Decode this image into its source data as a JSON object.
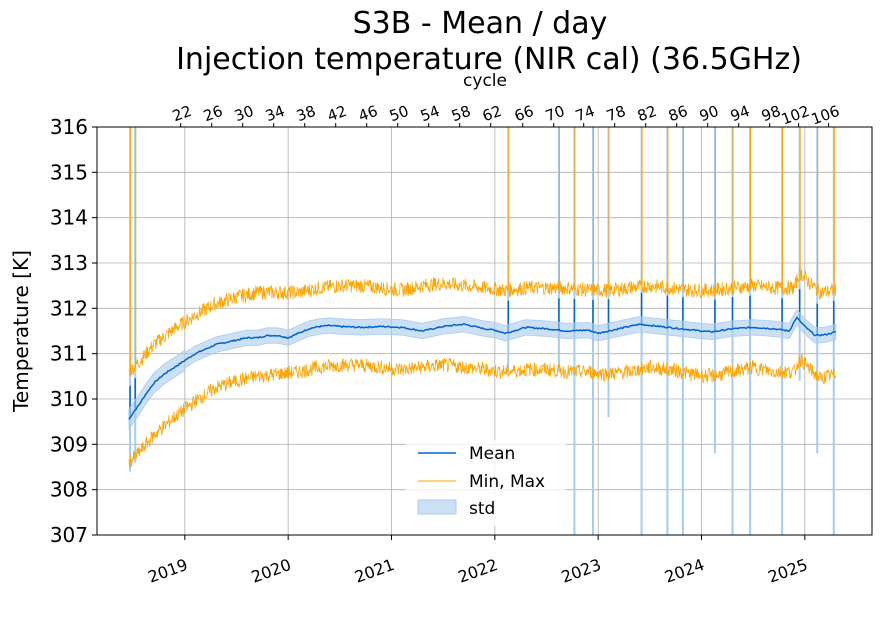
{
  "chart_data": {
    "type": "line",
    "title": "S3B - Mean / day",
    "subtitle": "Injection temperature (NIR cal) (36.5GHz)",
    "ylabel": "Temperature [K]",
    "x2label": "cycle",
    "ylim": [
      307,
      316
    ],
    "xlim": [
      2018.15,
      2025.65
    ],
    "yticks": [
      307,
      308,
      309,
      310,
      311,
      312,
      313,
      314,
      315,
      316
    ],
    "xticks": [
      {
        "value": 2019,
        "label": "2019"
      },
      {
        "value": 2020,
        "label": "2020"
      },
      {
        "value": 2021,
        "label": "2021"
      },
      {
        "value": 2022,
        "label": "2022"
      },
      {
        "value": 2023,
        "label": "2023"
      },
      {
        "value": 2024,
        "label": "2024"
      },
      {
        "value": 2025,
        "label": "2025"
      }
    ],
    "cycle_ticks": [
      {
        "value": 2018.96,
        "label": "22"
      },
      {
        "value": 2019.26,
        "label": "26"
      },
      {
        "value": 2019.56,
        "label": "30"
      },
      {
        "value": 2019.86,
        "label": "34"
      },
      {
        "value": 2020.16,
        "label": "38"
      },
      {
        "value": 2020.46,
        "label": "42"
      },
      {
        "value": 2020.76,
        "label": "46"
      },
      {
        "value": 2021.06,
        "label": "50"
      },
      {
        "value": 2021.36,
        "label": "54"
      },
      {
        "value": 2021.66,
        "label": "58"
      },
      {
        "value": 2021.96,
        "label": "62"
      },
      {
        "value": 2022.27,
        "label": "66"
      },
      {
        "value": 2022.57,
        "label": "70"
      },
      {
        "value": 2022.86,
        "label": "74"
      },
      {
        "value": 2023.16,
        "label": "78"
      },
      {
        "value": 2023.46,
        "label": "82"
      },
      {
        "value": 2023.76,
        "label": "86"
      },
      {
        "value": 2024.06,
        "label": "90"
      },
      {
        "value": 2024.36,
        "label": "94"
      },
      {
        "value": 2024.66,
        "label": "98"
      },
      {
        "value": 2024.94,
        "label": "102"
      },
      {
        "value": 2025.23,
        "label": "106"
      }
    ],
    "grid": true,
    "legend_position": "lower-center",
    "legend": [
      {
        "key": "mean",
        "label": "Mean"
      },
      {
        "key": "minmax",
        "label": "Min, Max"
      },
      {
        "key": "std",
        "label": "std"
      }
    ],
    "colors": {
      "mean": "#0066cc",
      "minmax": "#ffa500",
      "std": "#a8ccee",
      "grid": "#b0b0b0"
    },
    "series": {
      "mean": {
        "x": [
          2018.46,
          2018.5,
          2018.55,
          2018.62,
          2018.7,
          2018.8,
          2018.9,
          2019.0,
          2019.1,
          2019.2,
          2019.3,
          2019.4,
          2019.5,
          2019.6,
          2019.7,
          2019.8,
          2019.9,
          2020.0,
          2020.1,
          2020.2,
          2020.3,
          2020.4,
          2020.5,
          2020.7,
          2020.9,
          2021.1,
          2021.3,
          2021.5,
          2021.7,
          2021.9,
          2022.0,
          2022.1,
          2022.3,
          2022.5,
          2022.7,
          2022.9,
          2023.0,
          2023.2,
          2023.4,
          2023.6,
          2023.8,
          2024.0,
          2024.1,
          2024.3,
          2024.5,
          2024.7,
          2024.85,
          2024.92,
          2025.0,
          2025.1,
          2025.2,
          2025.3
        ],
        "y": [
          309.55,
          309.7,
          309.85,
          310.1,
          310.35,
          310.55,
          310.7,
          310.85,
          311.0,
          311.1,
          311.2,
          311.25,
          311.3,
          311.35,
          311.35,
          311.4,
          311.4,
          311.35,
          311.45,
          311.55,
          311.6,
          311.62,
          311.6,
          311.58,
          311.6,
          311.58,
          311.5,
          311.6,
          311.65,
          311.55,
          311.52,
          311.45,
          311.58,
          311.55,
          311.5,
          311.52,
          311.45,
          311.55,
          311.65,
          311.6,
          311.55,
          311.5,
          311.48,
          311.55,
          311.58,
          311.55,
          311.5,
          311.8,
          311.6,
          311.4,
          311.42,
          311.48
        ]
      },
      "std_band": {
        "x": "same as mean",
        "halfwidth": 0.17
      },
      "max": {
        "x": [
          2018.46,
          2018.55,
          2018.7,
          2018.9,
          2019.1,
          2019.3,
          2019.5,
          2019.7,
          2019.9,
          2020.1,
          2020.3,
          2020.5,
          2020.7,
          2020.9,
          2021.1,
          2021.3,
          2021.5,
          2021.7,
          2021.9,
          2022.1,
          2022.3,
          2022.5,
          2022.7,
          2022.9,
          2023.1,
          2023.3,
          2023.5,
          2023.7,
          2023.9,
          2024.1,
          2024.3,
          2024.5,
          2024.7,
          2024.9,
          2024.95,
          2025.05,
          2025.15,
          2025.3
        ],
        "y": [
          310.6,
          310.8,
          311.2,
          311.55,
          311.85,
          312.1,
          312.25,
          312.35,
          312.35,
          312.35,
          312.45,
          312.5,
          312.5,
          312.45,
          312.4,
          312.5,
          312.55,
          312.5,
          312.45,
          312.4,
          312.45,
          312.45,
          312.45,
          312.4,
          312.4,
          312.45,
          312.5,
          312.45,
          312.4,
          312.4,
          312.45,
          312.5,
          312.45,
          312.45,
          312.8,
          312.55,
          312.35,
          312.4
        ]
      },
      "min": {
        "x": [
          2018.46,
          2018.55,
          2018.7,
          2018.9,
          2019.1,
          2019.3,
          2019.5,
          2019.7,
          2019.9,
          2020.1,
          2020.3,
          2020.5,
          2020.7,
          2020.9,
          2021.1,
          2021.3,
          2021.5,
          2021.7,
          2021.9,
          2022.1,
          2022.3,
          2022.5,
          2022.7,
          2022.9,
          2023.1,
          2023.3,
          2023.5,
          2023.7,
          2023.9,
          2024.1,
          2024.3,
          2024.5,
          2024.7,
          2024.9,
          2024.95,
          2025.05,
          2025.15,
          2025.3
        ],
        "y": [
          308.6,
          308.8,
          309.2,
          309.6,
          309.95,
          310.25,
          310.4,
          310.5,
          310.55,
          310.6,
          310.7,
          310.75,
          310.75,
          310.7,
          310.65,
          310.7,
          310.75,
          310.7,
          310.65,
          310.6,
          310.65,
          310.65,
          310.6,
          310.6,
          310.55,
          310.6,
          310.7,
          310.65,
          310.55,
          310.5,
          310.6,
          310.7,
          310.6,
          310.6,
          310.9,
          310.65,
          310.45,
          310.55
        ]
      },
      "spikes": [
        {
          "x": 2018.47,
          "top": 316,
          "bottom": 308.4
        },
        {
          "x": 2018.52,
          "top": 316,
          "bottom": 308.6
        },
        {
          "x": 2022.13,
          "top": 316,
          "bottom": 310.6
        },
        {
          "x": 2022.62,
          "top": 316,
          "bottom": 310.6
        },
        {
          "x": 2022.77,
          "top": 316,
          "bottom": 307
        },
        {
          "x": 2022.95,
          "top": 316,
          "bottom": 307
        },
        {
          "x": 2023.1,
          "top": 316,
          "bottom": 309.6
        },
        {
          "x": 2023.42,
          "top": 316,
          "bottom": 307
        },
        {
          "x": 2023.67,
          "top": 316,
          "bottom": 307
        },
        {
          "x": 2023.82,
          "top": 316,
          "bottom": 307
        },
        {
          "x": 2024.13,
          "top": 316,
          "bottom": 308.8
        },
        {
          "x": 2024.3,
          "top": 316,
          "bottom": 307
        },
        {
          "x": 2024.47,
          "top": 316,
          "bottom": 307
        },
        {
          "x": 2024.78,
          "top": 316,
          "bottom": 307
        },
        {
          "x": 2024.95,
          "top": 316,
          "bottom": 310.4
        },
        {
          "x": 2025.12,
          "top": 316,
          "bottom": 308.8
        },
        {
          "x": 2025.28,
          "top": 316,
          "bottom": 307
        }
      ]
    }
  }
}
